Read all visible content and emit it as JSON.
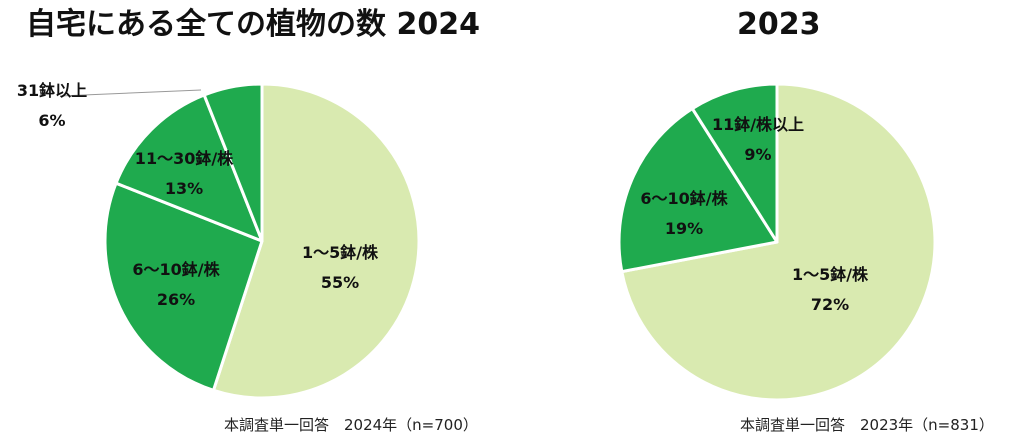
{
  "charts": {
    "left": {
      "title": "自宅にある全ての植物の数 2024",
      "note": "本調査単一回答　2024年（n=700）"
    },
    "right": {
      "title": "2023",
      "note": "本調査単一回答　2023年（n=831）"
    }
  },
  "colors": {
    "light": "#d9eab0",
    "dark": "#1faa4e",
    "border": "#ffffff",
    "leader": "#999999"
  },
  "chart_data": [
    {
      "type": "pie",
      "title": "自宅にある全ての植物の数 2024",
      "categories": [
        "1～5鉢/株",
        "6～10鉢/株",
        "11～30鉢/株",
        "31鉢以上"
      ],
      "values": [
        55,
        26,
        13,
        6
      ],
      "value_labels": [
        "55%",
        "26%",
        "13%",
        "6%"
      ],
      "slice_colors": [
        "#d9eab0",
        "#1faa4e",
        "#1faa4e",
        "#1faa4e"
      ],
      "start": "12 o'clock",
      "direction": "clockwise"
    },
    {
      "type": "pie",
      "title": "2023",
      "categories": [
        "1～5鉢/株",
        "6～10鉢/株",
        "11鉢/株以上"
      ],
      "values": [
        72,
        19,
        9
      ],
      "value_labels": [
        "72%",
        "19%",
        "9%"
      ],
      "slice_colors": [
        "#d9eab0",
        "#1faa4e",
        "#1faa4e"
      ],
      "start": "12 o'clock",
      "direction": "clockwise"
    }
  ]
}
